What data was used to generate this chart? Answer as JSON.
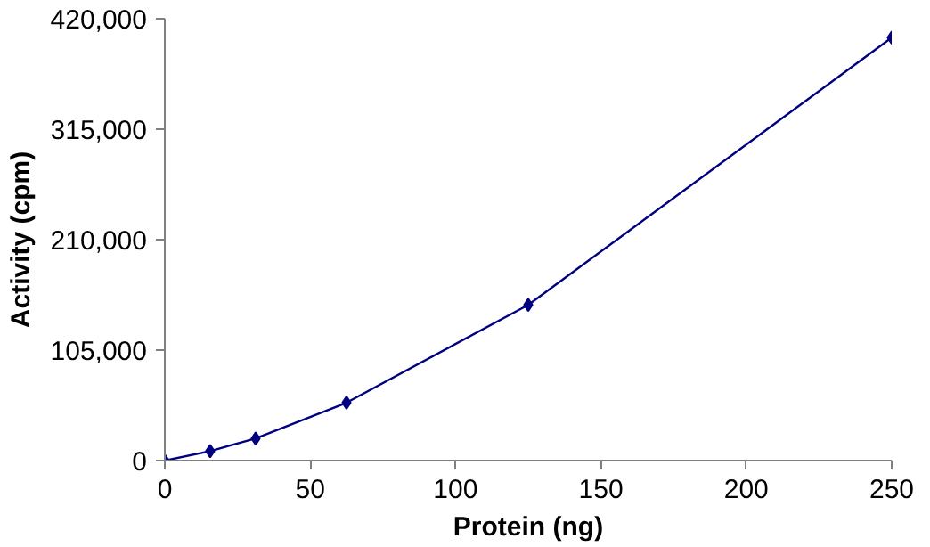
{
  "chart_data": {
    "type": "line",
    "xlabel": "Protein (ng)",
    "ylabel": "Activity (cpm)",
    "x": [
      0,
      15.6,
      31.25,
      62.5,
      125,
      250
    ],
    "series": [
      {
        "color": "#000080",
        "values": [
          0,
          9000,
          21000,
          55000,
          148000,
          402000
        ]
      }
    ],
    "xlim": [
      0,
      250
    ],
    "xticks": [
      0,
      50,
      100,
      150,
      200,
      250
    ],
    "ylim": [
      0,
      420000
    ],
    "yticks": [
      {
        "value": 0,
        "label": "0"
      },
      {
        "value": 105000,
        "label": "105,000"
      },
      {
        "value": 210000,
        "label": "210,000"
      },
      {
        "value": 315000,
        "label": "315,000"
      },
      {
        "value": 420000,
        "label": "420,000"
      }
    ],
    "grid": false,
    "marker": "diamond",
    "line_style": "solid"
  }
}
